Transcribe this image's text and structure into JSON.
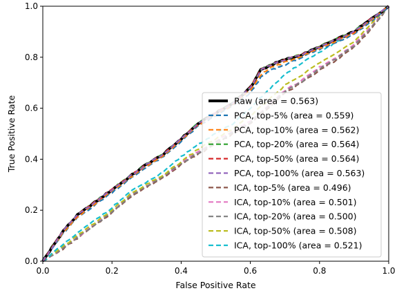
{
  "chart_data": {
    "type": "line",
    "xlabel": "False Positive Rate",
    "ylabel": "True Positive Rate",
    "xlim": [
      0,
      1
    ],
    "ylim": [
      0,
      1
    ],
    "xticks": [
      "0.0",
      "0.2",
      "0.4",
      "0.6",
      "0.8",
      "1.0"
    ],
    "yticks": [
      "0.0",
      "0.2",
      "0.4",
      "0.6",
      "0.8",
      "1.0"
    ],
    "grid": false,
    "legend_position": "lower-right",
    "series": [
      {
        "name": "Raw (area = 0.563)",
        "color": "#000000",
        "style": "solid",
        "group": "high",
        "x": [
          0,
          0.03,
          0.06,
          0.1,
          0.15,
          0.2,
          0.25,
          0.3,
          0.35,
          0.4,
          0.45,
          0.5,
          0.55,
          0.6,
          0.63,
          0.66,
          0.7,
          0.75,
          0.8,
          0.85,
          0.9,
          0.95,
          1.0
        ],
        "y": [
          0,
          0.06,
          0.12,
          0.18,
          0.23,
          0.28,
          0.33,
          0.38,
          0.42,
          0.48,
          0.54,
          0.58,
          0.62,
          0.68,
          0.75,
          0.77,
          0.79,
          0.81,
          0.84,
          0.87,
          0.9,
          0.95,
          1.0
        ]
      },
      {
        "name": "PCA, top-5% (area = 0.559)",
        "color": "#1f77b4",
        "style": "dashed",
        "group": "high",
        "x": [
          0,
          0.03,
          0.06,
          0.1,
          0.15,
          0.2,
          0.25,
          0.3,
          0.35,
          0.4,
          0.45,
          0.5,
          0.55,
          0.6,
          0.63,
          0.66,
          0.7,
          0.75,
          0.8,
          0.85,
          0.9,
          0.95,
          1.0
        ],
        "y": [
          0,
          0.055,
          0.11,
          0.17,
          0.22,
          0.27,
          0.32,
          0.37,
          0.41,
          0.47,
          0.53,
          0.57,
          0.61,
          0.66,
          0.72,
          0.75,
          0.77,
          0.8,
          0.83,
          0.86,
          0.89,
          0.94,
          1.0
        ]
      },
      {
        "name": "PCA, top-10% (area = 0.562)",
        "color": "#ff7f0e",
        "style": "dashed",
        "group": "high",
        "x": [
          0,
          0.03,
          0.06,
          0.1,
          0.15,
          0.2,
          0.25,
          0.3,
          0.35,
          0.4,
          0.45,
          0.5,
          0.55,
          0.6,
          0.63,
          0.66,
          0.7,
          0.75,
          0.8,
          0.85,
          0.9,
          0.95,
          1.0
        ],
        "y": [
          0,
          0.058,
          0.115,
          0.175,
          0.225,
          0.275,
          0.325,
          0.375,
          0.415,
          0.475,
          0.535,
          0.575,
          0.615,
          0.67,
          0.73,
          0.76,
          0.78,
          0.805,
          0.835,
          0.865,
          0.895,
          0.945,
          1.0
        ]
      },
      {
        "name": "PCA, top-20% (area = 0.564)",
        "color": "#2ca02c",
        "style": "dashed",
        "group": "high",
        "x": [
          0,
          0.03,
          0.06,
          0.1,
          0.15,
          0.2,
          0.25,
          0.3,
          0.35,
          0.4,
          0.45,
          0.5,
          0.55,
          0.6,
          0.63,
          0.66,
          0.7,
          0.75,
          0.8,
          0.85,
          0.9,
          0.95,
          1.0
        ],
        "y": [
          0,
          0.062,
          0.122,
          0.182,
          0.232,
          0.282,
          0.332,
          0.382,
          0.422,
          0.482,
          0.542,
          0.582,
          0.622,
          0.682,
          0.752,
          0.772,
          0.792,
          0.812,
          0.842,
          0.872,
          0.902,
          0.952,
          1.0
        ]
      },
      {
        "name": "PCA, top-50% (area = 0.564)",
        "color": "#d62728",
        "style": "dashed",
        "group": "high",
        "x": [
          0,
          0.03,
          0.06,
          0.1,
          0.15,
          0.2,
          0.25,
          0.3,
          0.35,
          0.4,
          0.45,
          0.5,
          0.55,
          0.6,
          0.63,
          0.66,
          0.7,
          0.75,
          0.8,
          0.85,
          0.9,
          0.95,
          1.0
        ],
        "y": [
          0,
          0.061,
          0.121,
          0.181,
          0.231,
          0.281,
          0.331,
          0.381,
          0.421,
          0.481,
          0.541,
          0.581,
          0.621,
          0.681,
          0.751,
          0.771,
          0.791,
          0.811,
          0.841,
          0.871,
          0.901,
          0.951,
          1.0
        ]
      },
      {
        "name": "PCA, top-100% (area = 0.563)",
        "color": "#9467bd",
        "style": "dashed",
        "group": "high",
        "x": [
          0,
          0.03,
          0.06,
          0.1,
          0.15,
          0.2,
          0.25,
          0.3,
          0.35,
          0.4,
          0.45,
          0.5,
          0.55,
          0.6,
          0.63,
          0.66,
          0.7,
          0.75,
          0.8,
          0.85,
          0.9,
          0.95,
          1.0
        ],
        "y": [
          0,
          0.06,
          0.12,
          0.18,
          0.23,
          0.28,
          0.33,
          0.38,
          0.42,
          0.48,
          0.54,
          0.58,
          0.62,
          0.68,
          0.75,
          0.77,
          0.79,
          0.81,
          0.84,
          0.87,
          0.9,
          0.95,
          1.0
        ]
      },
      {
        "name": "ICA, top-5% (area = 0.496)",
        "color": "#8c564b",
        "style": "dashed",
        "group": "low",
        "x": [
          0,
          0.05,
          0.1,
          0.15,
          0.2,
          0.25,
          0.3,
          0.35,
          0.4,
          0.45,
          0.5,
          0.55,
          0.6,
          0.65,
          0.7,
          0.75,
          0.8,
          0.85,
          0.9,
          0.95,
          1.0
        ],
        "y": [
          0,
          0.04,
          0.09,
          0.14,
          0.19,
          0.25,
          0.29,
          0.33,
          0.38,
          0.42,
          0.46,
          0.5,
          0.54,
          0.6,
          0.66,
          0.7,
          0.75,
          0.79,
          0.84,
          0.91,
          1.0
        ]
      },
      {
        "name": "ICA, top-10% (area = 0.501)",
        "color": "#e377c2",
        "style": "dashed",
        "group": "low",
        "x": [
          0,
          0.05,
          0.1,
          0.15,
          0.2,
          0.25,
          0.3,
          0.35,
          0.4,
          0.45,
          0.5,
          0.55,
          0.6,
          0.65,
          0.7,
          0.75,
          0.8,
          0.85,
          0.9,
          0.95,
          1.0
        ],
        "y": [
          0,
          0.045,
          0.095,
          0.145,
          0.195,
          0.255,
          0.295,
          0.335,
          0.385,
          0.43,
          0.47,
          0.51,
          0.55,
          0.61,
          0.67,
          0.71,
          0.76,
          0.8,
          0.85,
          0.92,
          1.0
        ]
      },
      {
        "name": "ICA, top-20% (area = 0.500)",
        "color": "#7f7f7f",
        "style": "dashed",
        "group": "low",
        "x": [
          0,
          0.05,
          0.1,
          0.15,
          0.2,
          0.25,
          0.3,
          0.35,
          0.4,
          0.45,
          0.5,
          0.55,
          0.6,
          0.65,
          0.7,
          0.75,
          0.8,
          0.85,
          0.9,
          0.95,
          1.0
        ],
        "y": [
          0,
          0.043,
          0.093,
          0.143,
          0.193,
          0.253,
          0.293,
          0.333,
          0.383,
          0.425,
          0.465,
          0.505,
          0.545,
          0.605,
          0.665,
          0.705,
          0.755,
          0.795,
          0.845,
          0.915,
          1.0
        ]
      },
      {
        "name": "ICA, top-50% (area = 0.508)",
        "color": "#bcbd22",
        "style": "dashed",
        "group": "low",
        "x": [
          0,
          0.05,
          0.1,
          0.15,
          0.2,
          0.25,
          0.3,
          0.35,
          0.4,
          0.45,
          0.5,
          0.55,
          0.6,
          0.65,
          0.7,
          0.75,
          0.8,
          0.85,
          0.9,
          0.95,
          1.0
        ],
        "y": [
          0,
          0.05,
          0.1,
          0.15,
          0.2,
          0.26,
          0.3,
          0.34,
          0.39,
          0.44,
          0.48,
          0.52,
          0.57,
          0.63,
          0.69,
          0.73,
          0.78,
          0.82,
          0.86,
          0.93,
          1.0
        ]
      },
      {
        "name": "ICA, top-100% (area = 0.521)",
        "color": "#17becf",
        "style": "dashed",
        "group": "low",
        "x": [
          0,
          0.05,
          0.1,
          0.15,
          0.2,
          0.25,
          0.3,
          0.35,
          0.4,
          0.45,
          0.5,
          0.55,
          0.6,
          0.65,
          0.7,
          0.75,
          0.8,
          0.85,
          0.9,
          0.95,
          1.0
        ],
        "y": [
          0,
          0.055,
          0.11,
          0.16,
          0.21,
          0.27,
          0.31,
          0.35,
          0.41,
          0.46,
          0.5,
          0.54,
          0.6,
          0.67,
          0.73,
          0.78,
          0.82,
          0.86,
          0.9,
          0.95,
          1.0
        ]
      }
    ]
  }
}
